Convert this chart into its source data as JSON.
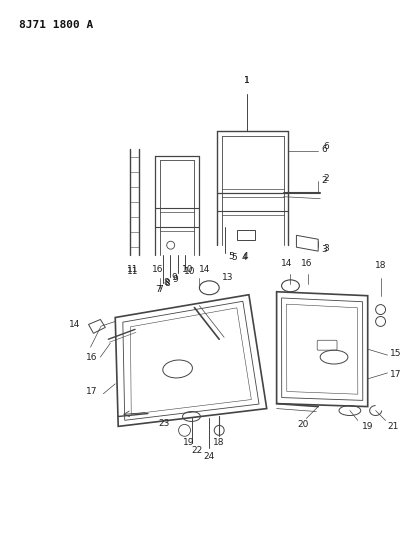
{
  "title": "8J71 1800 A",
  "bg_color": "#ffffff",
  "fig_size": [
    4.04,
    5.33
  ],
  "dpi": 100,
  "line_color": "#444444",
  "label_color": "#222222",
  "label_fs": 6.5
}
